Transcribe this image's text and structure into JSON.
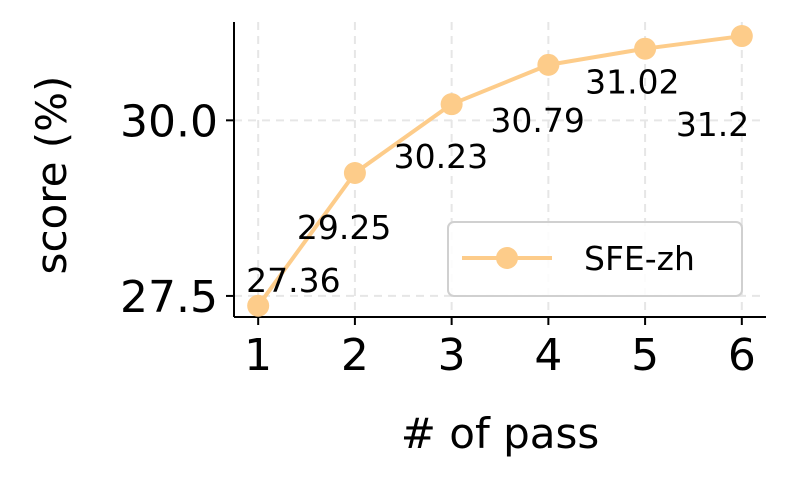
{
  "chart_data": {
    "type": "line",
    "title": "",
    "xlabel": "# of pass",
    "ylabel": "score (%)",
    "x": [
      1,
      2,
      3,
      4,
      5,
      6
    ],
    "xticks": [
      "1",
      "2",
      "3",
      "4",
      "5",
      "6"
    ],
    "yticks": [
      27.5,
      30.0
    ],
    "ytick_labels": [
      "27.5",
      "30.0"
    ],
    "xlim": [
      0.75,
      6.25
    ],
    "ylim": [
      27.2,
      31.4
    ],
    "grid": true,
    "legend_position": "lower-right",
    "series": [
      {
        "name": "SFE-zh",
        "color": "#fdcc8a",
        "marker": "circle",
        "values": [
          27.36,
          29.25,
          30.23,
          30.79,
          31.02,
          31.2
        ],
        "data_labels": [
          "27.36",
          "29.25",
          "30.23",
          "30.79",
          "31.02",
          "31.2"
        ]
      }
    ]
  }
}
